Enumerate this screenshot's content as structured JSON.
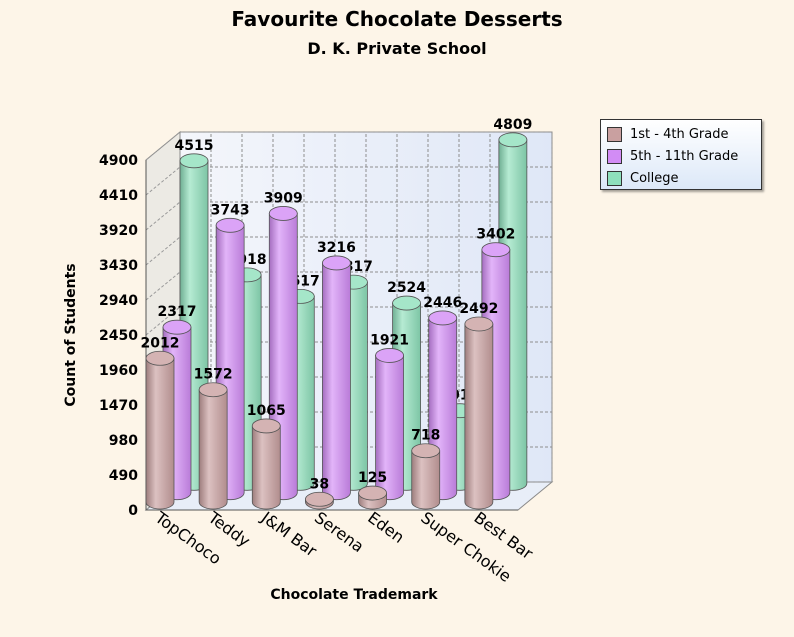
{
  "chart_data": {
    "type": "bar",
    "title": "Favourite Chocolate Desserts",
    "subtitle": "D. K. Private School",
    "xlabel": "Chocolate Trademark",
    "ylabel": "Count of Students",
    "categories": [
      "TopChoco",
      "Teddy",
      "J&M Bar",
      "Serena",
      "Eden",
      "Super Chokie",
      "Best Bar"
    ],
    "yticks": [
      "0",
      "490",
      "980",
      "1470",
      "1960",
      "2450",
      "2940",
      "3430",
      "3920",
      "4410",
      "4900"
    ],
    "ylim": [
      0,
      4900
    ],
    "grid": true,
    "legend_position": "top-right",
    "series": [
      {
        "name": "1st - 4th Grade",
        "values": [
          2012,
          1572,
          1065,
          38,
          125,
          718,
          2492
        ],
        "labels": [
          "2012",
          "1572",
          "1065",
          "38",
          "125",
          "718",
          "2492"
        ],
        "color": "#c9a0a0"
      },
      {
        "name": "5th - 11th Grade",
        "values": [
          2317,
          3743,
          3909,
          3216,
          1921,
          2446,
          3402
        ],
        "labels": [
          "2317",
          "3743",
          "3909",
          "3216",
          "1921",
          "2446",
          "3402"
        ],
        "color": "#d28cf5"
      },
      {
        "name": "College",
        "values": [
          4515,
          2918,
          2617,
          2817,
          2524,
          1017,
          4809
        ],
        "labels": [
          "4515",
          "2918",
          "2617",
          "2817",
          "2524",
          "1017",
          "4809"
        ],
        "color": "#8ee0bc"
      }
    ]
  }
}
